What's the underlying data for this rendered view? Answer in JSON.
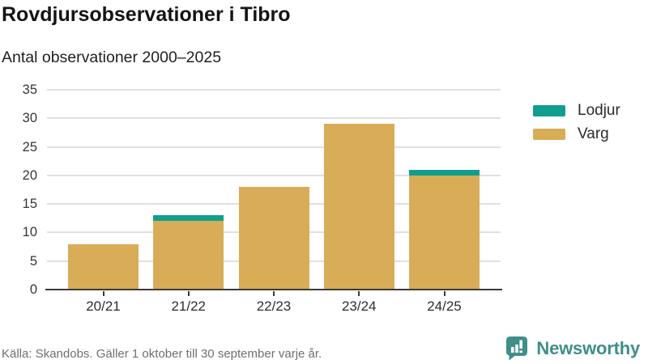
{
  "header": {
    "title": "Rovdjursobservationer i Tibro",
    "subtitle": "Antal observationer 2000–2025"
  },
  "chart_data": {
    "type": "bar",
    "stacked": true,
    "title": "Rovdjursobservationer i Tibro",
    "subtitle": "Antal observationer 2000–2025",
    "categories": [
      "20/21",
      "21/22",
      "22/23",
      "23/24",
      "24/25"
    ],
    "series": [
      {
        "name": "Lodjur",
        "color": "#109e8e",
        "values": [
          0,
          1,
          0,
          0,
          1
        ]
      },
      {
        "name": "Varg",
        "color": "#d9ac58",
        "values": [
          8,
          12,
          18,
          29,
          20
        ]
      }
    ],
    "totals": [
      8,
      13,
      18,
      29,
      21
    ],
    "xlabel": "",
    "ylabel": "",
    "ylim": [
      0,
      35
    ],
    "ytick_step": 5,
    "yticks": [
      0,
      5,
      10,
      15,
      20,
      25,
      30,
      35
    ],
    "grid": "horizontal",
    "legend_position": "right"
  },
  "legend": {
    "items": [
      {
        "label": "Lodjur",
        "color": "#109e8e"
      },
      {
        "label": "Varg",
        "color": "#d9ac58"
      }
    ]
  },
  "footer": {
    "source": "Källa: Skandobs. Gäller 1 oktober till 30 september varje år.",
    "brand": "Newsworthy",
    "brand_color": "#3f8e8a"
  },
  "colors": {
    "axis": "#3b3b3b",
    "grid": "#e0e0e0",
    "title_text": "#141414",
    "muted_text": "#6f6f6f"
  }
}
